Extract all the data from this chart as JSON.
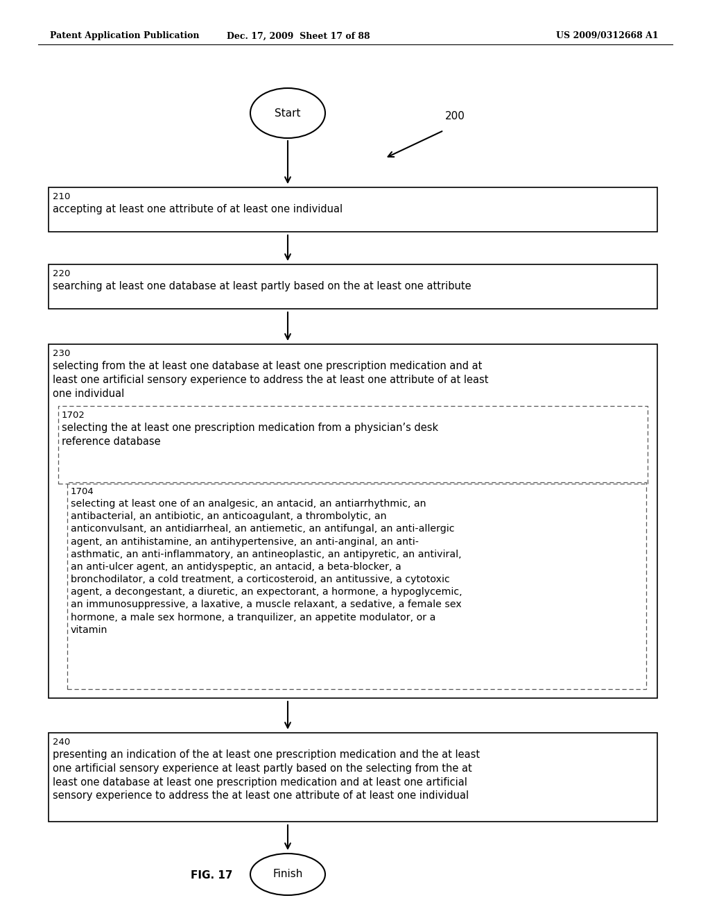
{
  "header_left": "Patent Application Publication",
  "header_mid": "Dec. 17, 2009  Sheet 17 of 88",
  "header_right": "US 2009/0312668 A1",
  "fig_label": "FIG. 17",
  "diagram_ref": "200",
  "start_label": "Start",
  "finish_label": "Finish",
  "box210_num": "210",
  "box210_text": "accepting at least one attribute of at least one individual",
  "box220_num": "220",
  "box220_text": "searching at least one database at least partly based on the at least one attribute",
  "box230_num": "230",
  "box230_text": "selecting from the at least one database at least one prescription medication and at\nleast one artificial sensory experience to address the at least one attribute of at least\none individual",
  "box1702_num": "1702",
  "box1702_text": "selecting the at least one prescription medication from a physician’s desk\nreference database",
  "box1704_num": "1704",
  "box1704_text": "selecting at least one of an analgesic, an antacid, an antiarrhythmic, an\nantibacterial, an antibiotic, an anticoagulant, a thrombolytic, an\nanticonvulsant, an antidiarrheal, an antiemetic, an antifungal, an anti-allergic\nagent, an antihistamine, an antihypertensive, an anti-anginal, an anti-\nasthmatic, an anti-inflammatory, an antineoplastic, an antipyretic, an antiviral,\nan anti-ulcer agent, an antidyspeptic, an antacid, a beta-blocker, a\nbronchodilator, a cold treatment, a corticosteroid, an antitussive, a cytotoxic\nagent, a decongestant, a diuretic, an expectorant, a hormone, a hypoglycemic,\nan immunosuppressive, a laxative, a muscle relaxant, a sedative, a female sex\nhormone, a male sex hormone, a tranquilizer, an appetite modulator, or a\nvitamin",
  "box240_num": "240",
  "box240_text": "presenting an indication of the at least one prescription medication and the at least\none artificial sensory experience at least partly based on the selecting from the at\nleast one database at least one prescription medication and at least one artificial\nsensory experience to address the at least one attribute of at least one individual",
  "bg_color": "#ffffff",
  "text_color": "#000000"
}
